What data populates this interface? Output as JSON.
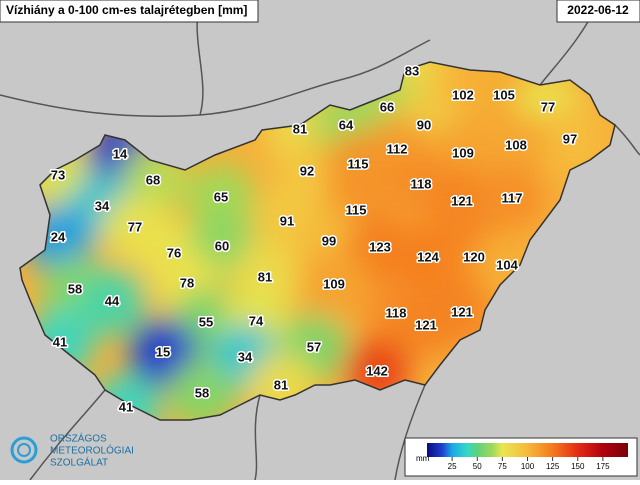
{
  "header": {
    "title": "Vízhiány a 0-100 cm-es talajrétegben [mm]",
    "date": "2022-06-12"
  },
  "stations": {
    "values": [
      83,
      102,
      105,
      77,
      66,
      90,
      97,
      81,
      64,
      112,
      109,
      108,
      14,
      92,
      115,
      118,
      73,
      68,
      121,
      117,
      65,
      34,
      115,
      91,
      77,
      76,
      99,
      123,
      124,
      120,
      24,
      60,
      104,
      78,
      58,
      81,
      109,
      44,
      118,
      121,
      121,
      55,
      74,
      41,
      15,
      34,
      57,
      142,
      81,
      58,
      41
    ]
  },
  "colorbar": {
    "unit": "mm",
    "range": [
      0,
      200
    ],
    "ticks": [
      25,
      50,
      75,
      100,
      125,
      150,
      175
    ]
  },
  "logo": {
    "lines": [
      "ORSZÁGOS",
      "METEOROLÓGIAI",
      "SZOLGÁLAT"
    ]
  }
}
